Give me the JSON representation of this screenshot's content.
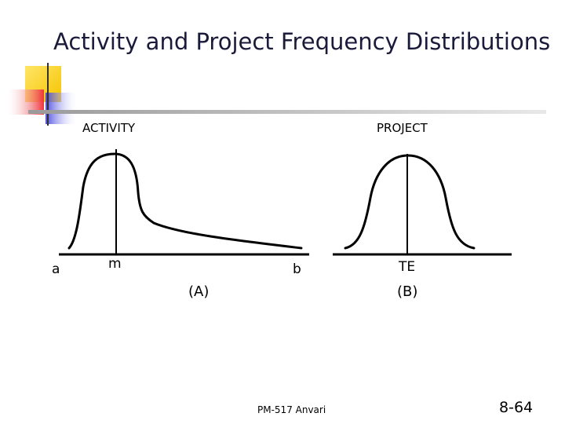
{
  "slide": {
    "title": "Activity and Project Frequency Distributions",
    "footer": "PM-517   Anvari",
    "slide_number": "8-64"
  },
  "panel_a": {
    "header": "ACTIVITY",
    "label_a": "a",
    "label_m": "m",
    "label_b": "b",
    "caption": "(A)"
  },
  "panel_b": {
    "header": "PROJECT",
    "label_te": "TE",
    "caption": "(B)"
  },
  "colors": {
    "deco_yellow": "#ffd21e",
    "deco_red": "#f0333a",
    "deco_blue": "#3a3ad8",
    "rule_gray": "#b8b8b8",
    "title_color": "#1a1a3a"
  }
}
